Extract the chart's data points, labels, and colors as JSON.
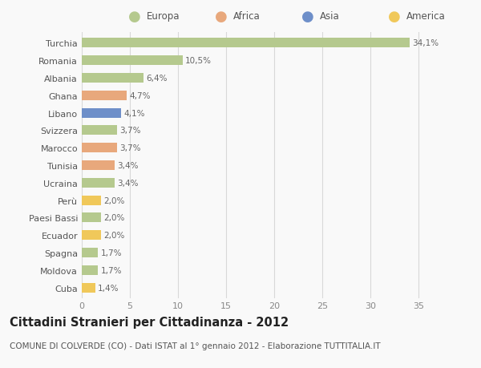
{
  "categories": [
    "Turchia",
    "Romania",
    "Albania",
    "Ghana",
    "Libano",
    "Svizzera",
    "Marocco",
    "Tunisia",
    "Ucraina",
    "Perù",
    "Paesi Bassi",
    "Ecuador",
    "Spagna",
    "Moldova",
    "Cuba"
  ],
  "values": [
    34.1,
    10.5,
    6.4,
    4.7,
    4.1,
    3.7,
    3.7,
    3.4,
    3.4,
    2.0,
    2.0,
    2.0,
    1.7,
    1.7,
    1.4
  ],
  "labels": [
    "34,1%",
    "10,5%",
    "6,4%",
    "4,7%",
    "4,1%",
    "3,7%",
    "3,7%",
    "3,4%",
    "3,4%",
    "2,0%",
    "2,0%",
    "2,0%",
    "1,7%",
    "1,7%",
    "1,4%"
  ],
  "colors": [
    "#b5c98e",
    "#b5c98e",
    "#b5c98e",
    "#e8a87c",
    "#6e8fc9",
    "#b5c98e",
    "#e8a87c",
    "#e8a87c",
    "#b5c98e",
    "#f0c85a",
    "#b5c98e",
    "#f0c85a",
    "#b5c98e",
    "#b5c98e",
    "#f0c85a"
  ],
  "legend_labels": [
    "Europa",
    "Africa",
    "Asia",
    "America"
  ],
  "legend_colors": [
    "#b5c98e",
    "#e8a87c",
    "#6e8fc9",
    "#f0c85a"
  ],
  "title": "Cittadini Stranieri per Cittadinanza - 2012",
  "subtitle": "COMUNE DI COLVERDE (CO) - Dati ISTAT al 1° gennaio 2012 - Elaborazione TUTTITALIA.IT",
  "xlim": [
    0,
    37
  ],
  "xticks": [
    0,
    5,
    10,
    15,
    20,
    25,
    30,
    35
  ],
  "background_color": "#f9f9f9",
  "grid_color": "#e8e8e8",
  "bar_height": 0.55,
  "title_fontsize": 10.5,
  "subtitle_fontsize": 7.5,
  "tick_fontsize": 8,
  "label_fontsize": 7.5,
  "legend_fontsize": 8.5
}
